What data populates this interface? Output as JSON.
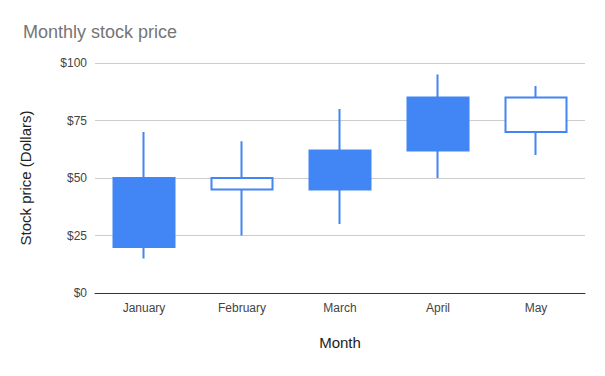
{
  "chart_data": {
    "type": "candlestick",
    "title": "Monthly stock price",
    "x_label": "Month",
    "y_label": "Stock price (Dollars)",
    "categories": [
      "January",
      "February",
      "March",
      "April",
      "May"
    ],
    "open": [
      50,
      45,
      62,
      85,
      70
    ],
    "close": [
      20,
      50,
      45,
      62,
      85
    ],
    "low": [
      15,
      25,
      30,
      50,
      60
    ],
    "high": [
      70,
      66,
      80,
      95,
      90
    ],
    "color": "#4285f4",
    "ylim": [
      0,
      100
    ],
    "yticks": [
      {
        "value": 0,
        "label": "$0"
      },
      {
        "value": 25,
        "label": "$25"
      },
      {
        "value": 50,
        "label": "$50"
      },
      {
        "value": 75,
        "label": "$75"
      },
      {
        "value": 100,
        "label": "$100"
      }
    ],
    "grid": true
  }
}
